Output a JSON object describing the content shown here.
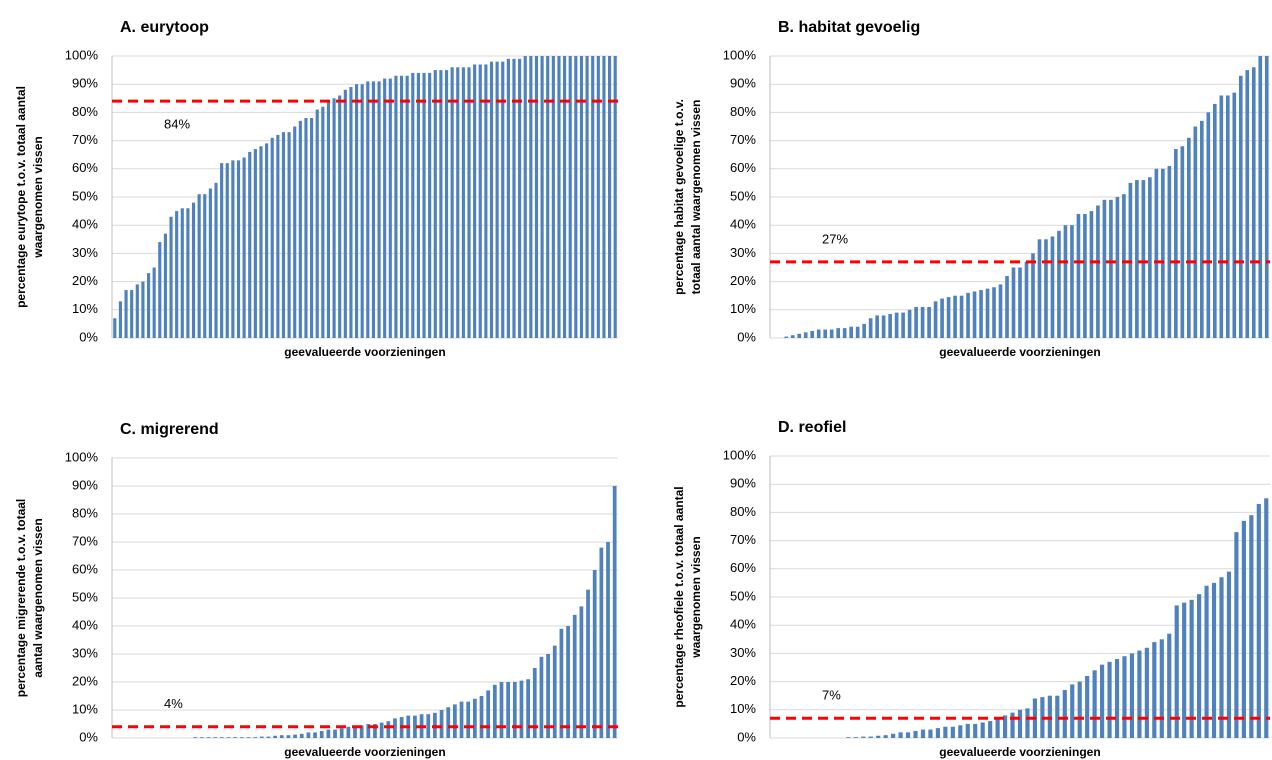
{
  "chart_data": [
    {
      "type": "bar",
      "title": "A. eurytoop",
      "xlabel": "geevalueerde voorzieningen",
      "ylabel": [
        "percentage eurytope t.o.v. totaal aantal",
        "waargenomen vissen"
      ],
      "color": "#4f81bd",
      "ylim": [
        0,
        100
      ],
      "yticks": [
        {
          "value": 0,
          "label": "0%"
        },
        {
          "value": 10,
          "label": "10%"
        },
        {
          "value": 20,
          "label": "20%"
        },
        {
          "value": 30,
          "label": "30%"
        },
        {
          "value": 40,
          "label": "40%"
        },
        {
          "value": 50,
          "label": "50%"
        },
        {
          "value": 60,
          "label": "60%"
        },
        {
          "value": 70,
          "label": "70%"
        },
        {
          "value": 80,
          "label": "80%"
        },
        {
          "value": 90,
          "label": "90%"
        },
        {
          "value": 100,
          "label": "100%"
        }
      ],
      "grid": true,
      "refline": {
        "value": 84,
        "label": "84%",
        "color": "#ff0000"
      },
      "values": [
        7,
        13,
        17,
        17,
        19,
        20,
        23,
        25,
        34,
        37,
        43,
        45,
        46,
        46,
        48,
        51,
        51,
        53,
        55,
        62,
        62,
        63,
        63,
        64,
        66,
        67,
        68,
        69,
        71,
        72,
        73,
        73,
        75,
        77,
        78,
        78,
        81,
        82,
        84,
        85,
        86,
        88,
        89,
        90,
        90,
        91,
        91,
        91,
        92,
        92,
        93,
        93,
        93,
        94,
        94,
        94,
        94,
        95,
        95,
        95,
        96,
        96,
        96,
        96,
        97,
        97,
        97,
        98,
        98,
        98,
        99,
        99,
        99,
        100,
        100,
        100,
        100,
        100,
        100,
        100,
        100,
        100,
        100,
        100,
        100,
        100,
        100,
        100,
        100,
        100
      ]
    },
    {
      "type": "bar",
      "title": "B. habitat gevoelig",
      "xlabel": "geevalueerde voorzieningen",
      "ylabel": [
        "percentage habitat gevoelige t.o.v.",
        "totaal aantal waargenomen vissen"
      ],
      "color": "#4f81bd",
      "ylim": [
        0,
        100
      ],
      "yticks": [
        {
          "value": 0,
          "label": "0%"
        },
        {
          "value": 10,
          "label": "10%"
        },
        {
          "value": 20,
          "label": "20%"
        },
        {
          "value": 30,
          "label": "30%"
        },
        {
          "value": 40,
          "label": "40%"
        },
        {
          "value": 50,
          "label": "50%"
        },
        {
          "value": 60,
          "label": "60%"
        },
        {
          "value": 70,
          "label": "70%"
        },
        {
          "value": 80,
          "label": "80%"
        },
        {
          "value": 90,
          "label": "90%"
        },
        {
          "value": 100,
          "label": "100%"
        }
      ],
      "grid": true,
      "refline": {
        "value": 27,
        "label": "27%",
        "color": "#ff0000"
      },
      "values": [
        0,
        0,
        0.5,
        1,
        1.5,
        2,
        2.5,
        3,
        3,
        3,
        3.5,
        3.5,
        4,
        4,
        5,
        7,
        8,
        8,
        8.5,
        9,
        9,
        10,
        11,
        11,
        11,
        13,
        14,
        14.5,
        15,
        15,
        16,
        16.5,
        17,
        17.5,
        18,
        19,
        22,
        25,
        25,
        27,
        30,
        35,
        35,
        36,
        38,
        40,
        40,
        44,
        44,
        45,
        47,
        49,
        49,
        50,
        51,
        55,
        56,
        56,
        57,
        60,
        60,
        61,
        67,
        68,
        71,
        75,
        77,
        80,
        83,
        86,
        86,
        87,
        93,
        95,
        96,
        100,
        100
      ]
    },
    {
      "type": "bar",
      "title": "C. migrerend",
      "xlabel": "geevalueerde voorzieningen",
      "ylabel": [
        "percentage migrerende t.o.v. totaal",
        "aantal waargenomen vissen"
      ],
      "color": "#4f81bd",
      "ylim": [
        0,
        100
      ],
      "yticks": [
        {
          "value": 0,
          "label": "0%"
        },
        {
          "value": 10,
          "label": "10%"
        },
        {
          "value": 20,
          "label": "20%"
        },
        {
          "value": 30,
          "label": "30%"
        },
        {
          "value": 40,
          "label": "40%"
        },
        {
          "value": 50,
          "label": "50%"
        },
        {
          "value": 60,
          "label": "60%"
        },
        {
          "value": 70,
          "label": "70%"
        },
        {
          "value": 80,
          "label": "80%"
        },
        {
          "value": 90,
          "label": "90%"
        },
        {
          "value": 100,
          "label": "100%"
        }
      ],
      "grid": true,
      "refline": {
        "value": 4,
        "label": "4%",
        "color": "#ff0000"
      },
      "values": [
        0,
        0,
        0,
        0,
        0,
        0,
        0,
        0,
        0,
        0,
        0,
        0,
        0.3,
        0.3,
        0.3,
        0.3,
        0.3,
        0.3,
        0.3,
        0.3,
        0.3,
        0.3,
        0.5,
        0.5,
        0.8,
        1,
        1,
        1.2,
        1.5,
        2,
        2,
        2.5,
        3,
        3,
        3.5,
        4,
        4,
        4.5,
        5,
        5,
        5.5,
        6,
        7,
        7.5,
        8,
        8,
        8.5,
        8.5,
        9,
        10,
        11,
        12,
        13,
        13,
        14,
        15,
        17,
        19,
        20,
        20,
        20,
        20.5,
        21,
        25,
        29,
        30,
        33,
        39,
        40,
        44,
        47,
        53,
        60,
        68,
        70,
        90
      ]
    },
    {
      "type": "bar",
      "title": "D. reofiel",
      "xlabel": "geevalueerde voorzieningen",
      "ylabel": [
        "percentage rheofiele t.o.v. totaal aantal",
        "waargenomen vissen"
      ],
      "color": "#4f81bd",
      "ylim": [
        0,
        100
      ],
      "yticks": [
        {
          "value": 0,
          "label": "0%"
        },
        {
          "value": 10,
          "label": "10%"
        },
        {
          "value": 20,
          "label": "20%"
        },
        {
          "value": 30,
          "label": "30%"
        },
        {
          "value": 40,
          "label": "40%"
        },
        {
          "value": 50,
          "label": "50%"
        },
        {
          "value": 60,
          "label": "60%"
        },
        {
          "value": 70,
          "label": "70%"
        },
        {
          "value": 80,
          "label": "80%"
        },
        {
          "value": 90,
          "label": "90%"
        },
        {
          "value": 100,
          "label": "100%"
        }
      ],
      "grid": true,
      "refline": {
        "value": 7,
        "label": "7%",
        "color": "#ff0000"
      },
      "values": [
        0,
        0,
        0,
        0,
        0,
        0,
        0,
        0,
        0,
        0,
        0.3,
        0.3,
        0.5,
        0.5,
        0.8,
        1,
        1.5,
        2,
        2,
        2.5,
        3,
        3,
        3.5,
        4,
        4,
        4.5,
        5,
        5,
        5.5,
        6,
        7,
        8,
        9,
        10,
        10.5,
        14,
        14.5,
        15,
        15,
        17,
        19,
        20,
        22,
        24,
        26,
        27,
        28,
        29,
        30,
        31,
        32,
        34,
        35,
        37,
        47,
        48,
        49,
        51,
        54,
        55,
        57,
        59,
        73,
        77,
        79,
        83,
        85
      ]
    }
  ]
}
